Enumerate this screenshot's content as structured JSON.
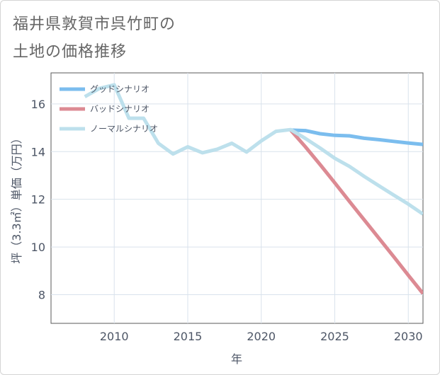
{
  "title_lines": [
    "福井県敦賀市呉竹町の",
    "土地の価格推移"
  ],
  "chart_data": {
    "type": "line",
    "title": "福井県敦賀市呉竹町の土地の価格推移",
    "xlabel": "年",
    "ylabel": "坪（3.3㎡）単価（万円）",
    "xlim": [
      2005.7,
      2031
    ],
    "ylim": [
      6.8,
      17.3
    ],
    "xticks": [
      2010,
      2015,
      2020,
      2025,
      2030
    ],
    "yticks": [
      8,
      10,
      12,
      14,
      16
    ],
    "grid": true,
    "legend_position": "top-left",
    "series": [
      {
        "name": "グッドシナリオ",
        "color": "#7bbdee",
        "x": [
          2022,
          2023,
          2024,
          2025,
          2026,
          2027,
          2028,
          2029,
          2030,
          2031
        ],
        "values": [
          14.9,
          14.88,
          14.75,
          14.68,
          14.66,
          14.56,
          14.5,
          14.43,
          14.36,
          14.3
        ]
      },
      {
        "name": "バッドシナリオ",
        "color": "#dc8a93",
        "x": [
          2022,
          2023,
          2024,
          2025,
          2026,
          2027,
          2028,
          2029,
          2030,
          2031
        ],
        "values": [
          14.9,
          14.2,
          13.46,
          12.69,
          11.91,
          11.14,
          10.37,
          9.6,
          8.82,
          8.05
        ]
      },
      {
        "name": "ノーマルシナリオ",
        "color": "#bde0ec",
        "x": [
          2008,
          2009,
          2010,
          2011,
          2012,
          2013,
          2014,
          2015,
          2016,
          2017,
          2018,
          2019,
          2020,
          2021,
          2022,
          2023,
          2024,
          2025,
          2026,
          2027,
          2028,
          2029,
          2030,
          2031
        ],
        "values": [
          16.3,
          16.65,
          16.8,
          15.4,
          15.4,
          14.35,
          13.9,
          14.2,
          13.95,
          14.1,
          14.35,
          13.98,
          14.45,
          14.85,
          14.92,
          14.55,
          14.15,
          13.72,
          13.38,
          12.96,
          12.57,
          12.18,
          11.8,
          11.38
        ]
      }
    ]
  }
}
